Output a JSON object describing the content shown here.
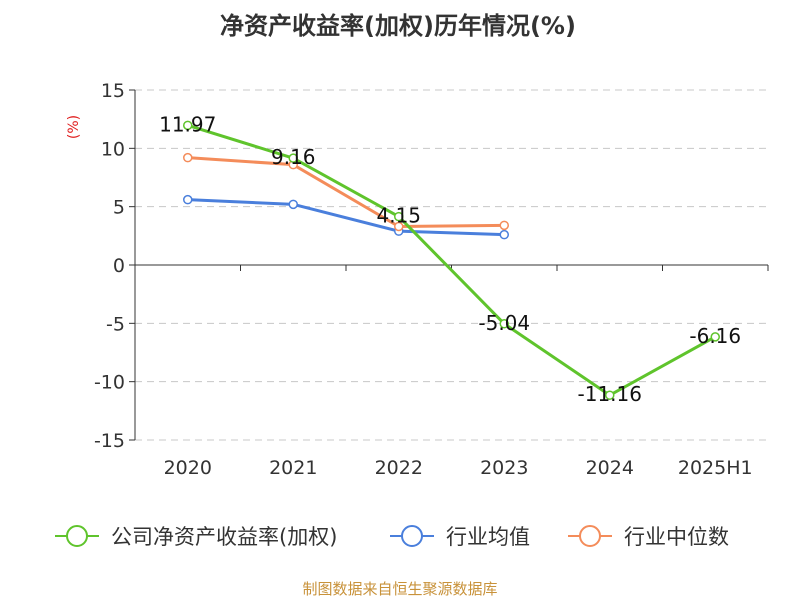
{
  "chart_data": {
    "type": "line",
    "title": "净资产收益率(加权)历年情况(%)",
    "ylabel": "(%)",
    "categories": [
      "2020",
      "2021",
      "2022",
      "2023",
      "2024",
      "2025H1"
    ],
    "ylim": [
      -15,
      15
    ],
    "yticks": [
      "15",
      "10",
      "5",
      "0",
      "-5",
      "-10",
      "-15"
    ],
    "grid": true,
    "legend_position": "bottom",
    "series": [
      {
        "name": "公司净资产收益率(加权)",
        "color": "#5fc42c",
        "values": [
          11.97,
          9.16,
          4.15,
          -5.04,
          -11.16,
          -6.16
        ],
        "labels": [
          "11.97",
          "9.16",
          "4.15",
          "-5.04",
          "-11.16",
          "-6.16"
        ]
      },
      {
        "name": "行业均值",
        "color": "#4a7fdc",
        "values": [
          5.6,
          5.2,
          2.9,
          2.6,
          null,
          null
        ]
      },
      {
        "name": "行业中位数",
        "color": "#f48c5a",
        "values": [
          9.2,
          8.6,
          3.3,
          3.4,
          null,
          null
        ]
      }
    ],
    "source": "制图数据来自恒生聚源数据库"
  }
}
